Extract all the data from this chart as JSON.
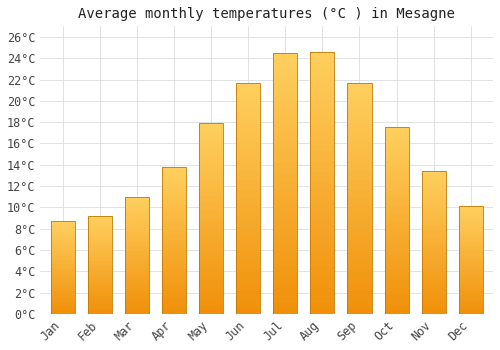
{
  "title": "Average monthly temperatures (°C ) in Mesagne",
  "months": [
    "Jan",
    "Feb",
    "Mar",
    "Apr",
    "May",
    "Jun",
    "Jul",
    "Aug",
    "Sep",
    "Oct",
    "Nov",
    "Dec"
  ],
  "values": [
    8.7,
    9.2,
    11.0,
    13.8,
    17.9,
    21.7,
    24.5,
    24.6,
    21.7,
    17.5,
    13.4,
    10.1
  ],
  "bar_color_top": "#FFD060",
  "bar_color_bottom": "#F0900A",
  "bar_edge_color": "#C07800",
  "background_color": "#FFFFFF",
  "grid_color": "#DDDDDD",
  "text_color": "#444444",
  "ylim": [
    0,
    27
  ],
  "ytick_step": 2,
  "title_fontsize": 10,
  "tick_fontsize": 8.5
}
